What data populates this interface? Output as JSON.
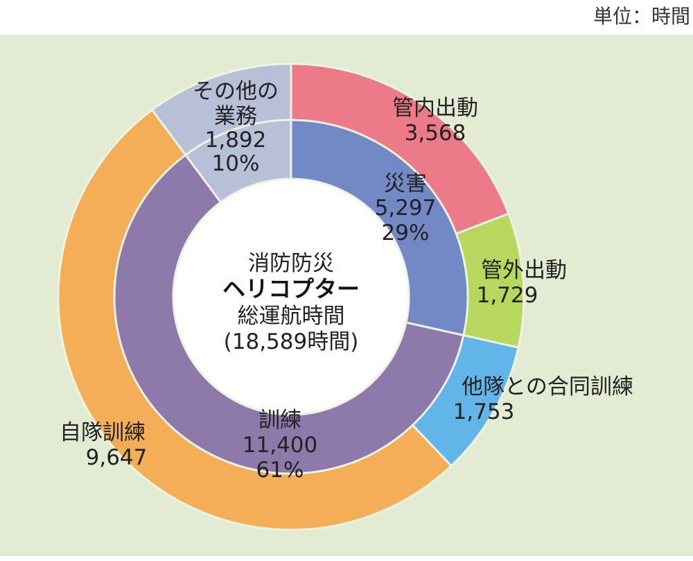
{
  "unit_label": "単位：時間",
  "center": {
    "line1": "消防防災",
    "line2": "ヘリコプター",
    "line3": "総運航時間",
    "line4": "(18,589時間)"
  },
  "chart_data": [
    {
      "type": "pie",
      "ring": "inner",
      "slices": [
        {
          "name": "災害",
          "value": 5297,
          "percent": "29%",
          "color": "#7289c6"
        },
        {
          "name": "訓練",
          "value": 11400,
          "percent": "61%",
          "color": "#8e79ab"
        },
        {
          "name": "その他の業務",
          "value": 1892,
          "percent": "10%",
          "color": "#b7c0d6"
        }
      ]
    },
    {
      "type": "pie",
      "ring": "outer",
      "slices": [
        {
          "name": "管内出動",
          "value": 3568,
          "color": "#ec7a87"
        },
        {
          "name": "管外出動",
          "value": 1729,
          "color": "#b7d75e"
        },
        {
          "name": "他隊との合同訓練",
          "value": 1753,
          "color": "#62b5e8"
        },
        {
          "name": "自隊訓練",
          "value": 9647,
          "color": "#f4ae57"
        },
        {
          "name": "その他の業務",
          "value": 1892,
          "color": "#b7c0d6"
        }
      ]
    }
  ],
  "labels": {
    "kannai": {
      "name": "管内出動",
      "value": "3,568"
    },
    "kangai": {
      "name": "管外出動",
      "value": "1,729"
    },
    "godo": {
      "name": "他隊との合同訓練",
      "value": "1,753"
    },
    "jitai": {
      "name": "自隊訓練",
      "value": "9,647"
    },
    "sonota": {
      "name1": "その他の",
      "name2": "業務",
      "value": "1,892",
      "percent": "10%"
    },
    "saigai": {
      "name": "災害",
      "value": "5,297",
      "percent": "29%"
    },
    "kunren": {
      "name": "訓練",
      "value": "11,400",
      "percent": "61%"
    }
  }
}
